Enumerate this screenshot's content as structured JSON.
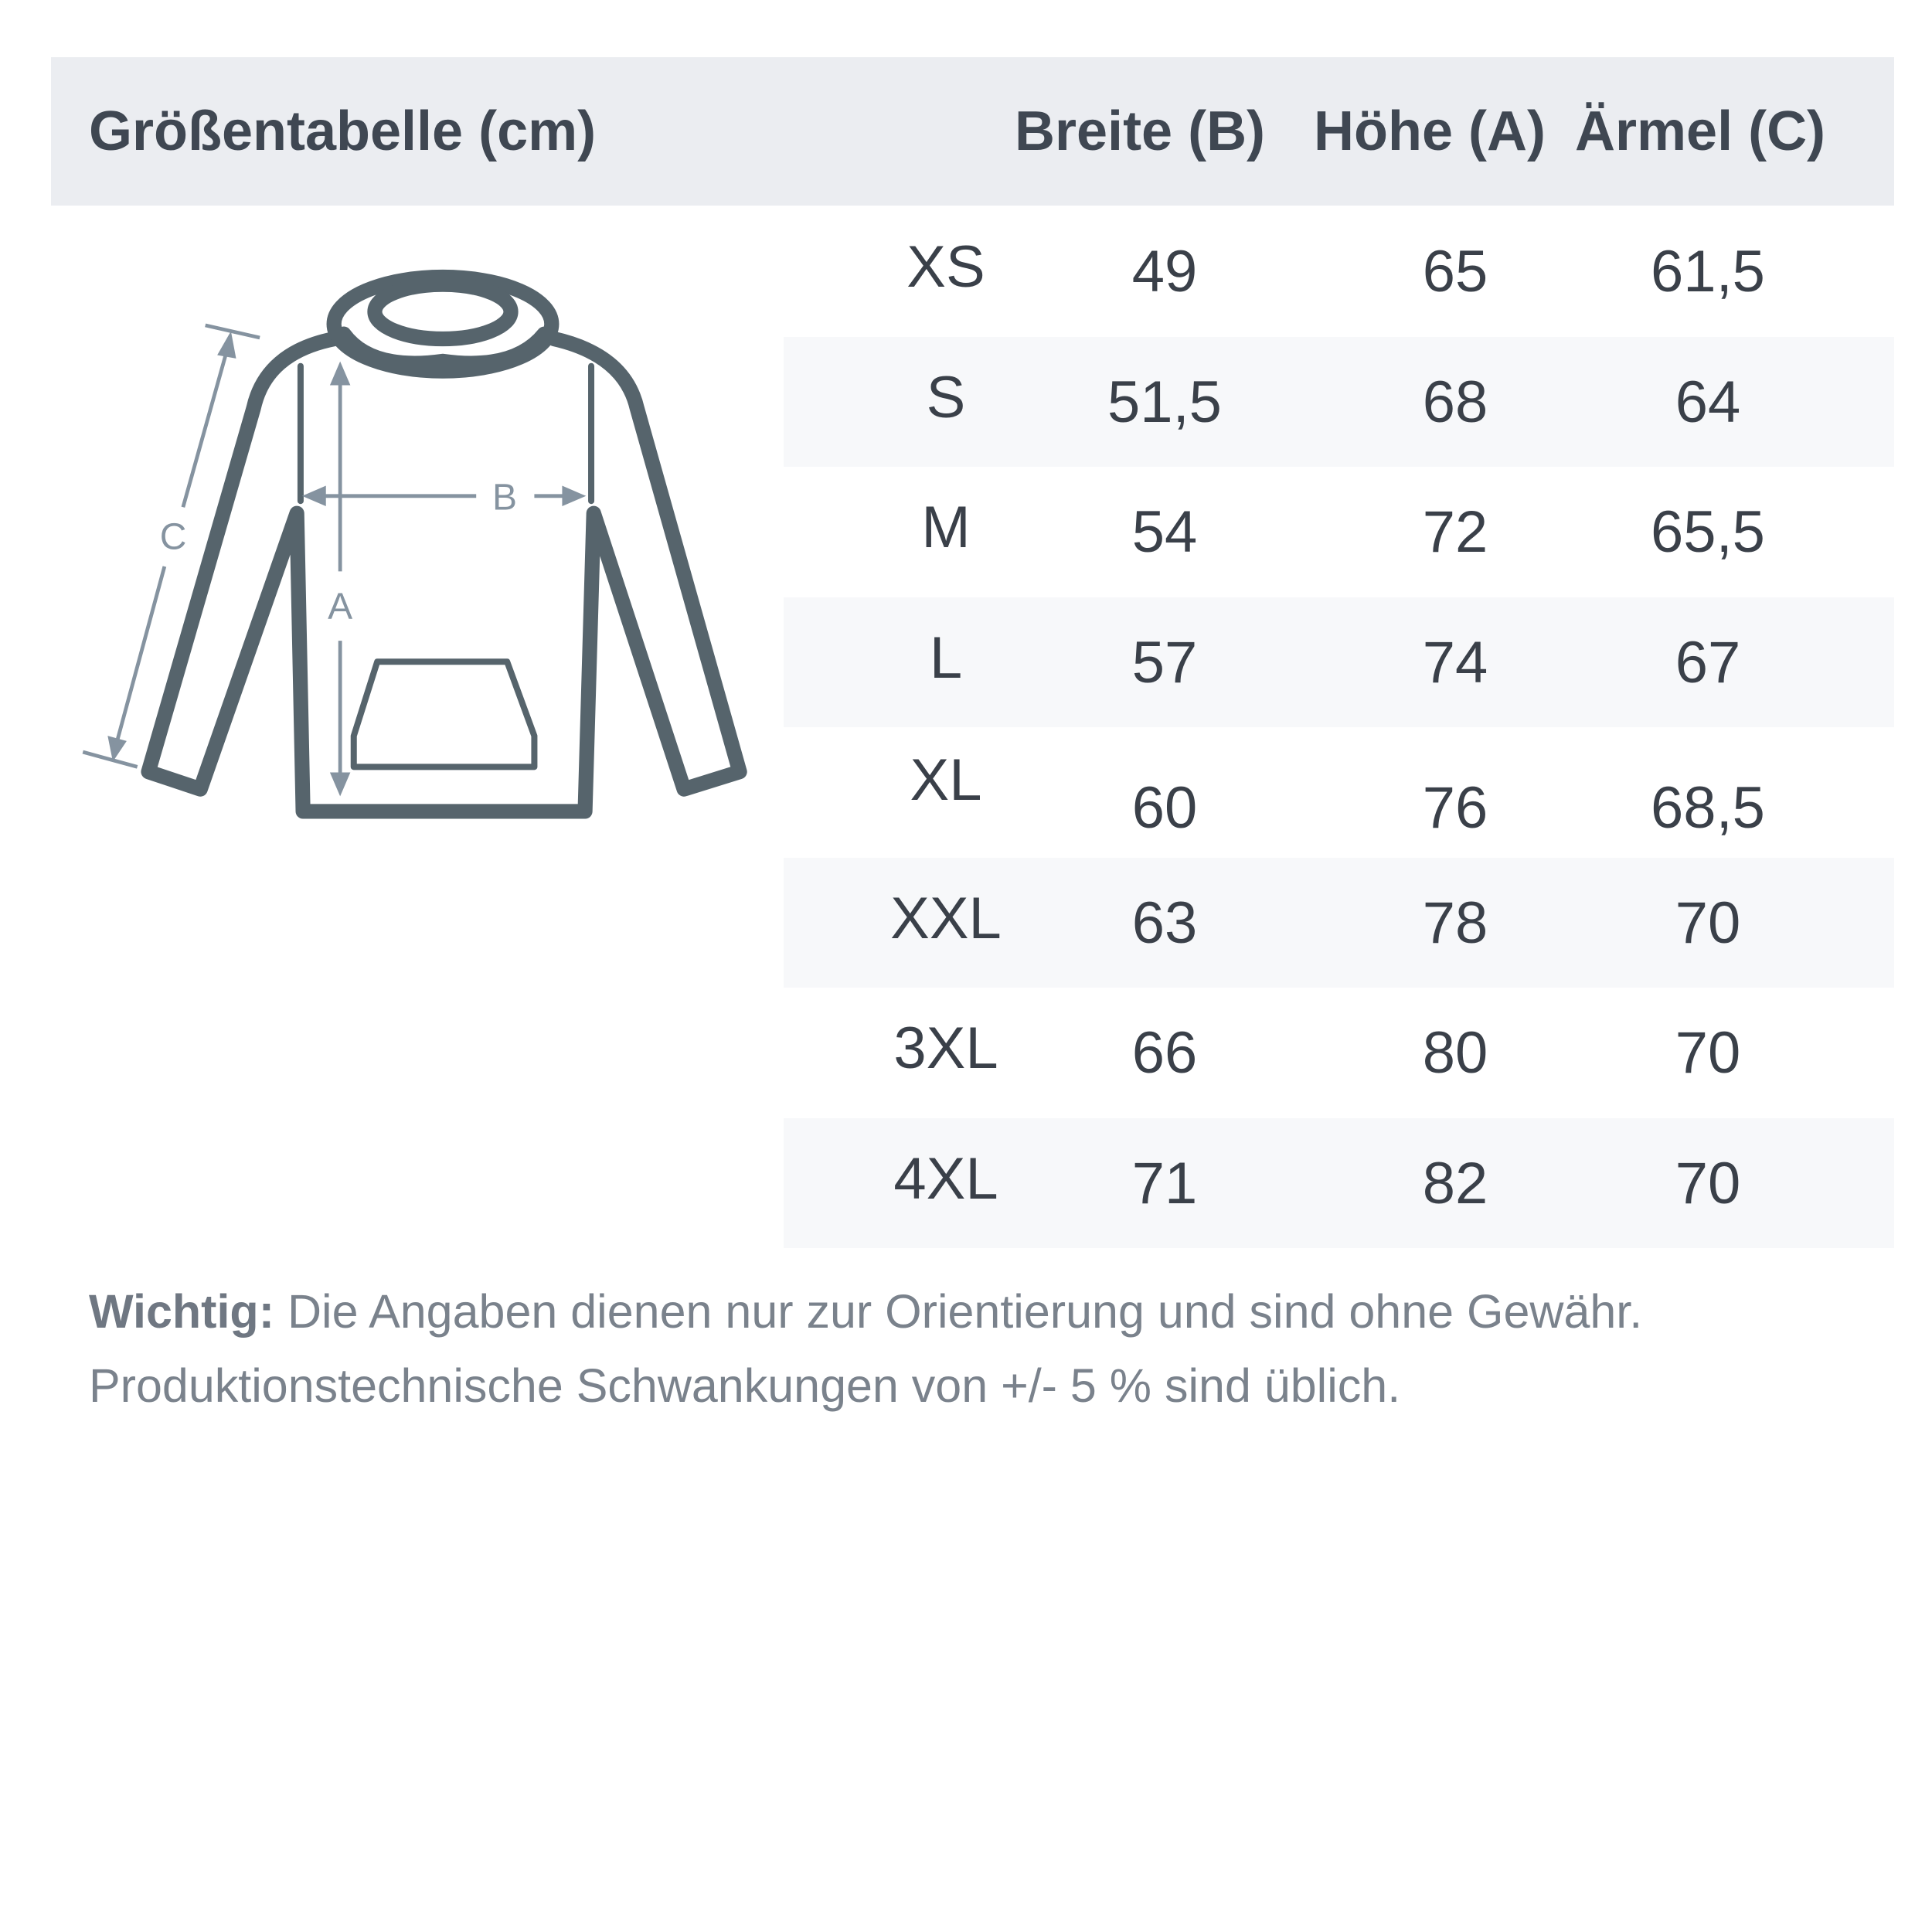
{
  "header": {
    "title": "Größentabelle (cm)",
    "columns": [
      "Breite (B)",
      "Höhe (A)",
      "Ärmel (C)"
    ]
  },
  "rows": [
    {
      "size": "XS",
      "breite": "49",
      "hoehe": "65",
      "aermel": "61,5"
    },
    {
      "size": "S",
      "breite": "51,5",
      "hoehe": "68",
      "aermel": "64"
    },
    {
      "size": "M",
      "breite": "54",
      "hoehe": "72",
      "aermel": "65,5"
    },
    {
      "size": "L",
      "breite": "57",
      "hoehe": "74",
      "aermel": "67"
    },
    {
      "size": "XL",
      "breite": "60",
      "hoehe": "76",
      "aermel": "68,5"
    },
    {
      "size": "XXL",
      "breite": "63",
      "hoehe": "78",
      "aermel": "70"
    },
    {
      "size": "3XL",
      "breite": "66",
      "hoehe": "80",
      "aermel": "70"
    },
    {
      "size": "4XL",
      "breite": "71",
      "hoehe": "82",
      "aermel": "70"
    }
  ],
  "diagram": {
    "labels": {
      "a": "A",
      "b": "B",
      "c": "C"
    },
    "garment_color": "#56646c",
    "arrow_color": "#8593a0"
  },
  "note": {
    "bold": "Wichtig:",
    "line1": " Die Angaben dienen nur zur Orientierung und sind ohne Gewähr.",
    "line2": "Produktionstechnische Schwankungen von +/- 5 % sind üblich."
  }
}
